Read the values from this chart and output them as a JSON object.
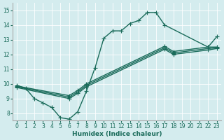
{
  "xlabel": "Humidex (Indice chaleur)",
  "xlim": [
    -0.5,
    23.5
  ],
  "ylim": [
    7.5,
    15.5
  ],
  "xticks": [
    0,
    1,
    2,
    3,
    4,
    5,
    6,
    7,
    8,
    9,
    10,
    11,
    12,
    13,
    14,
    15,
    16,
    17,
    18,
    19,
    20,
    21,
    22,
    23
  ],
  "yticks": [
    8,
    9,
    10,
    11,
    12,
    13,
    14,
    15
  ],
  "bg_color": "#d4ecee",
  "line_color": "#1a6b5a",
  "line_width": 1.0,
  "marker": "+",
  "marker_size": 4,
  "lines": [
    {
      "x": [
        0,
        1,
        2,
        3,
        4,
        5,
        6,
        7,
        8,
        9,
        10,
        11,
        12,
        13,
        14,
        15,
        16,
        17,
        22,
        23
      ],
      "y": [
        9.9,
        9.7,
        9.0,
        8.7,
        8.4,
        7.7,
        7.6,
        8.1,
        9.5,
        11.1,
        13.1,
        13.6,
        13.6,
        14.1,
        14.3,
        14.85,
        14.85,
        14.0,
        12.5,
        13.2
      ]
    },
    {
      "x": [
        0,
        6,
        7,
        8,
        17,
        18,
        22,
        23
      ],
      "y": [
        9.85,
        9.2,
        9.55,
        10.0,
        12.55,
        12.2,
        12.5,
        12.5
      ]
    },
    {
      "x": [
        0,
        6,
        7,
        8,
        17,
        18,
        22,
        23
      ],
      "y": [
        9.8,
        9.1,
        9.45,
        9.9,
        12.45,
        12.1,
        12.4,
        12.45
      ]
    },
    {
      "x": [
        0,
        6,
        7,
        8,
        17,
        18,
        22,
        23
      ],
      "y": [
        9.75,
        9.0,
        9.35,
        9.8,
        12.35,
        12.0,
        12.3,
        12.4
      ]
    }
  ]
}
